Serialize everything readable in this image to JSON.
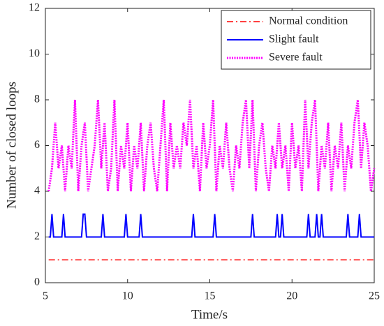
{
  "chart_data": {
    "type": "line",
    "xlabel": "Time/s",
    "ylabel": "Number of closed loops",
    "xlim": [
      5,
      25
    ],
    "xticks": [
      5,
      10,
      15,
      20,
      25
    ],
    "ylim": [
      0,
      12
    ],
    "yticks": [
      0,
      2,
      4,
      6,
      8,
      10,
      12
    ],
    "legend": "upper right",
    "series": [
      {
        "name": "Normal condition",
        "color": "#ff0000",
        "style": "dashdot",
        "x": [
          5.2,
          25
        ],
        "values": [
          1,
          1
        ]
      },
      {
        "name": "Slight fault",
        "color": "#0000ff",
        "style": "solid",
        "x": [
          5.2,
          5.3,
          5.4,
          5.5,
          6.0,
          6.1,
          6.2,
          7.2,
          7.3,
          7.4,
          7.5,
          8.4,
          8.5,
          8.6,
          9.8,
          9.9,
          10.0,
          10.7,
          10.8,
          10.9,
          13.9,
          14.0,
          14.1,
          15.2,
          15.3,
          15.4,
          17.5,
          17.6,
          17.7,
          19.0,
          19.1,
          19.2,
          19.3,
          19.4,
          19.5,
          20.9,
          21.0,
          21.1,
          21.4,
          21.5,
          21.6,
          21.7,
          21.8,
          21.9,
          23.3,
          23.4,
          23.5,
          24.0,
          24.1,
          24.2,
          25.0
        ],
        "values": [
          2,
          2,
          3,
          2,
          2,
          3,
          2,
          2,
          3,
          3,
          2,
          2,
          3,
          2,
          2,
          3,
          2,
          2,
          3,
          2,
          2,
          3,
          2,
          2,
          3,
          2,
          2,
          3,
          2,
          2,
          3,
          2,
          2,
          3,
          2,
          2,
          3,
          2,
          2,
          3,
          2,
          2,
          3,
          2,
          2,
          3,
          2,
          2,
          3,
          2,
          2
        ]
      },
      {
        "name": "Severe fault",
        "color": "#ff00ff",
        "style": "dotted",
        "x": [
          5.2,
          5.4,
          5.6,
          5.8,
          6.0,
          6.2,
          6.4,
          6.6,
          6.8,
          7.0,
          7.2,
          7.4,
          7.6,
          7.8,
          8.0,
          8.2,
          8.4,
          8.6,
          8.8,
          9.0,
          9.2,
          9.4,
          9.6,
          9.8,
          10.0,
          10.2,
          10.4,
          10.6,
          10.8,
          11.0,
          11.2,
          11.4,
          11.6,
          11.8,
          12.0,
          12.2,
          12.4,
          12.6,
          12.8,
          13.0,
          13.2,
          13.4,
          13.6,
          13.8,
          14.0,
          14.2,
          14.4,
          14.6,
          14.8,
          15.0,
          15.2,
          15.4,
          15.6,
          15.8,
          16.0,
          16.2,
          16.4,
          16.6,
          16.8,
          17.0,
          17.2,
          17.4,
          17.6,
          17.8,
          18.0,
          18.2,
          18.4,
          18.6,
          18.8,
          19.0,
          19.2,
          19.4,
          19.6,
          19.8,
          20.0,
          20.2,
          20.4,
          20.6,
          20.8,
          21.0,
          21.2,
          21.4,
          21.6,
          21.8,
          22.0,
          22.2,
          22.4,
          22.6,
          22.8,
          23.0,
          23.2,
          23.4,
          23.6,
          23.8,
          24.0,
          24.2,
          24.4,
          24.6,
          24.8,
          25.0
        ],
        "values": [
          4,
          5,
          7,
          5,
          6,
          4,
          6,
          5,
          8,
          4,
          6,
          7,
          4,
          5,
          6,
          8,
          5,
          7,
          4,
          5,
          8,
          4,
          6,
          5,
          7,
          4,
          6,
          5,
          7,
          4,
          6,
          7,
          5,
          4,
          6,
          8,
          4,
          7,
          5,
          6,
          5,
          7,
          6,
          8,
          5,
          6,
          4,
          7,
          5,
          6,
          8,
          4,
          6,
          5,
          7,
          5,
          4,
          6,
          5,
          7,
          8,
          5,
          8,
          4,
          6,
          7,
          5,
          4,
          6,
          5,
          7,
          5,
          6,
          4,
          7,
          5,
          6,
          4,
          8,
          5,
          7,
          8,
          4,
          6,
          5,
          7,
          4,
          6,
          5,
          7,
          4,
          6,
          5,
          7,
          8,
          5,
          7,
          6,
          4,
          5
        ]
      }
    ]
  }
}
